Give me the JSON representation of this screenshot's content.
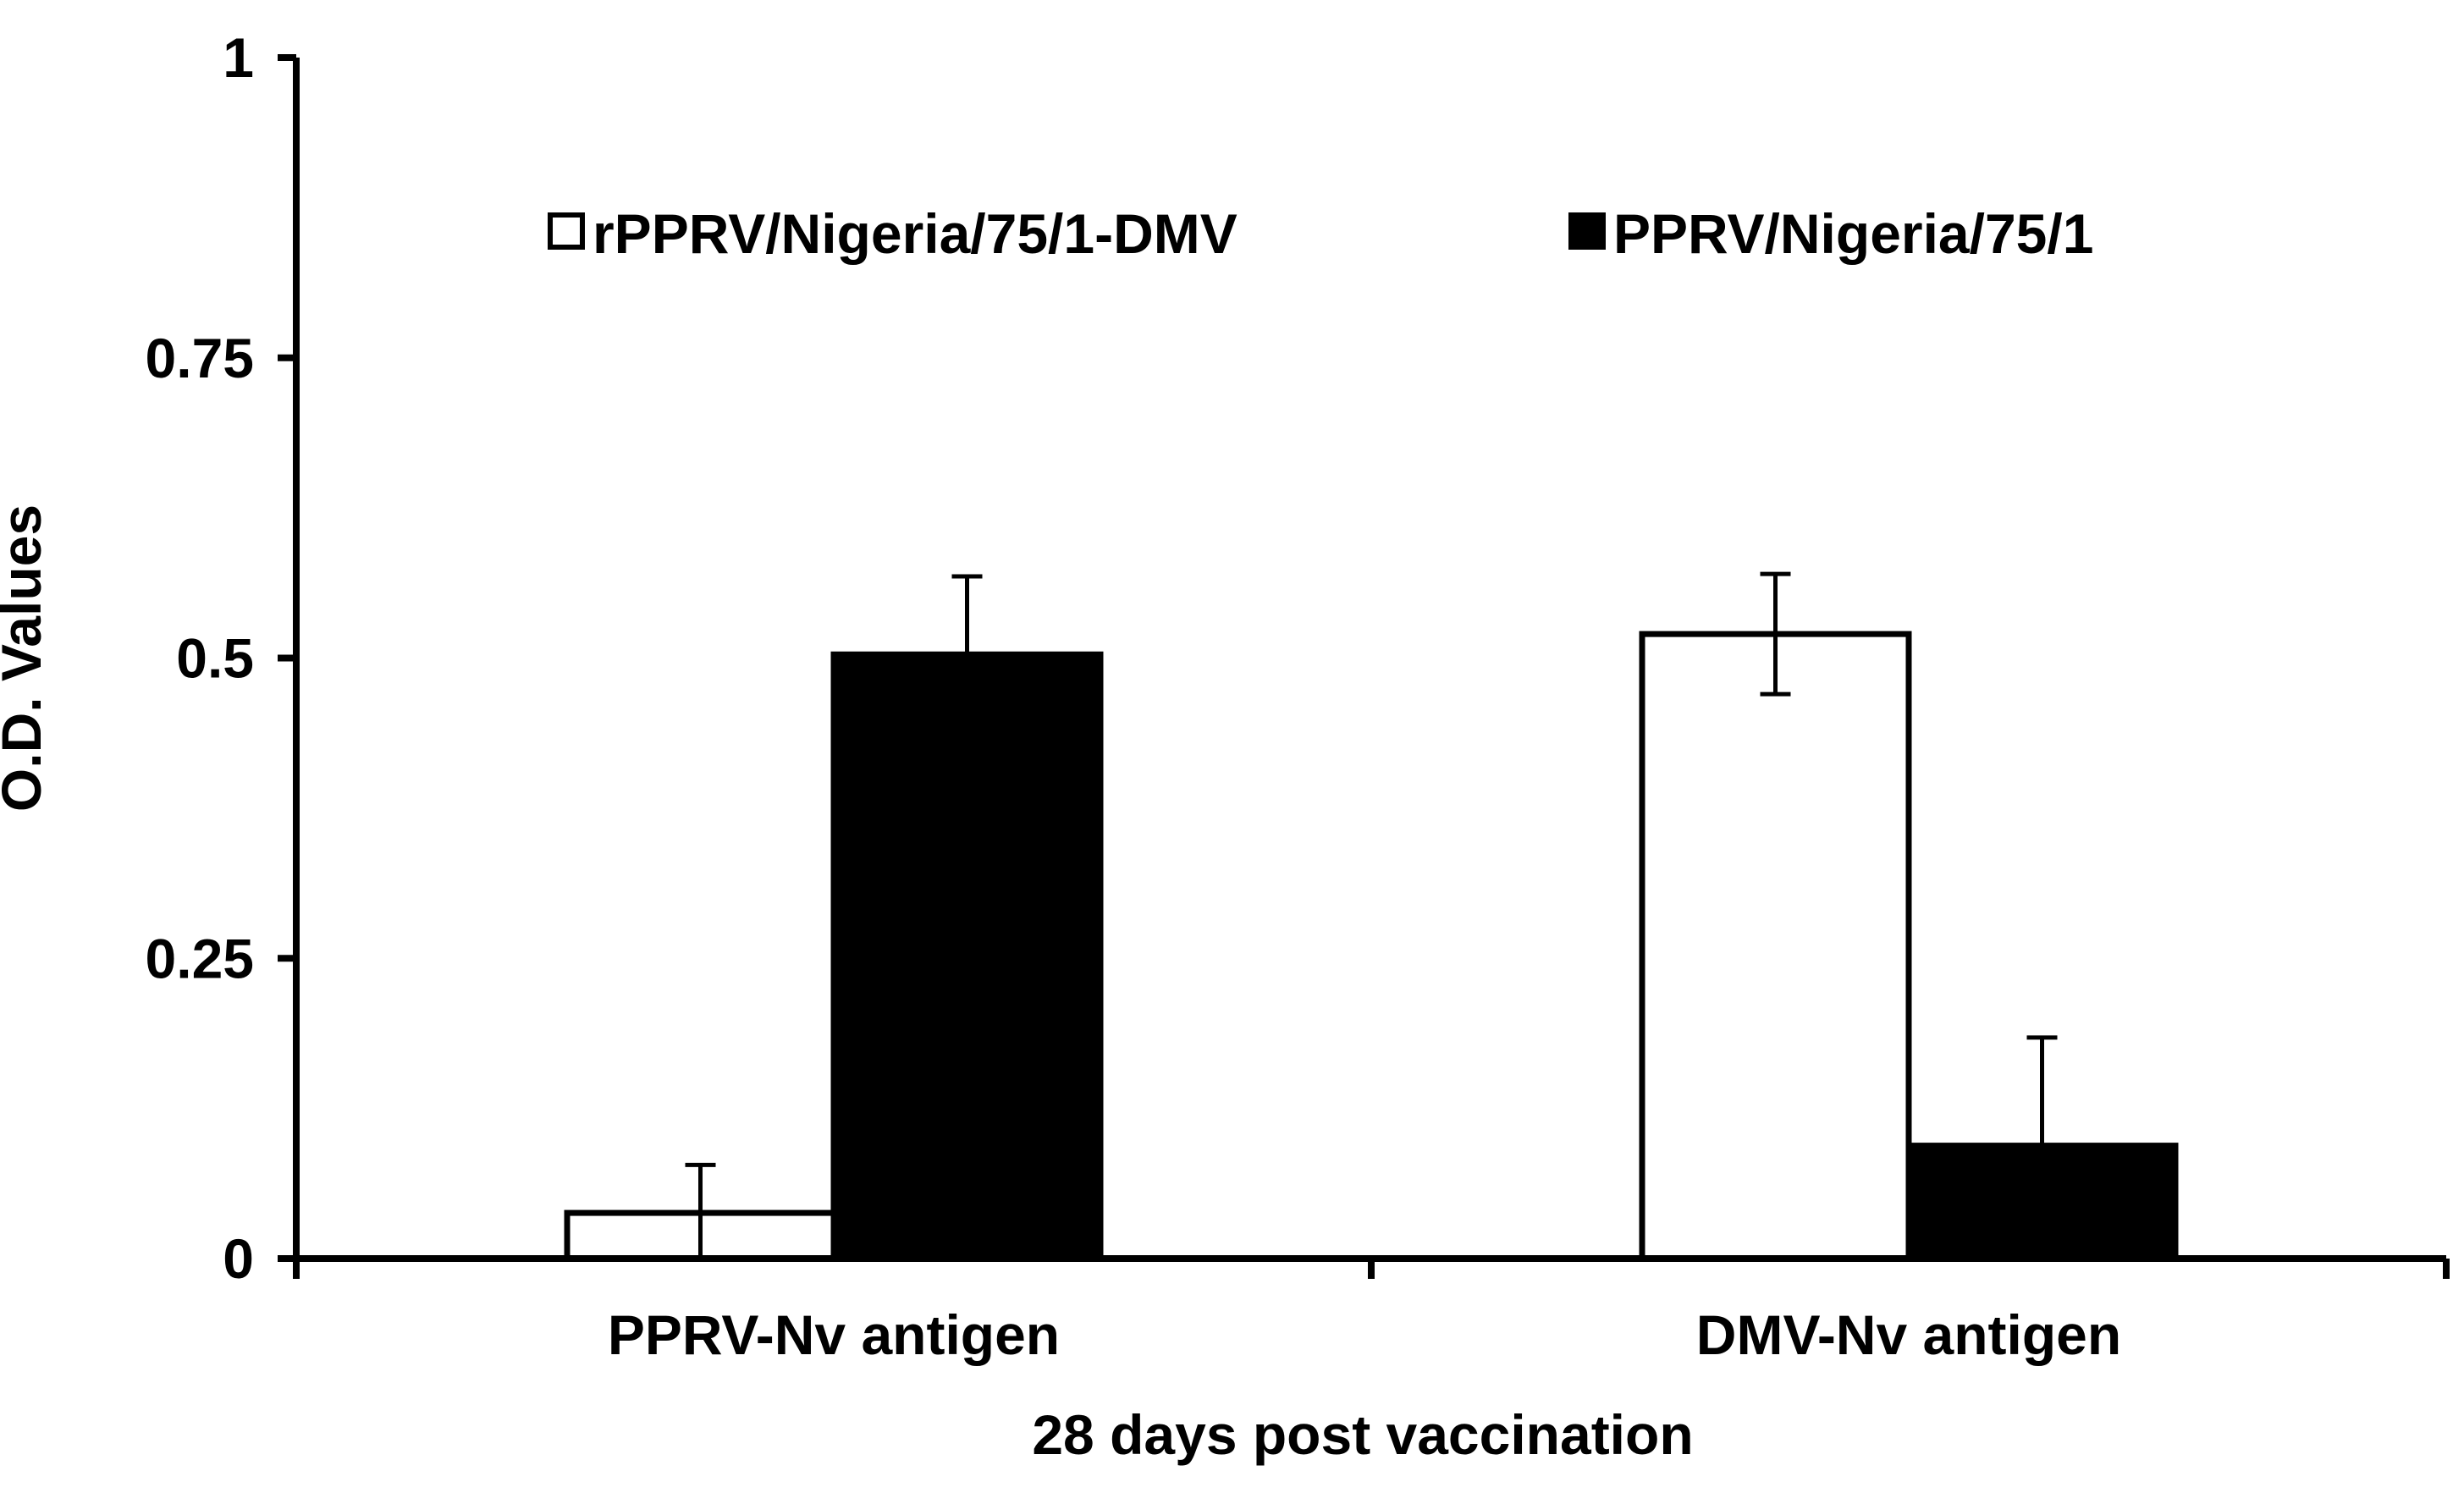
{
  "chart_data": {
    "type": "bar",
    "title": "",
    "xlabel": "28 days post vaccination",
    "ylabel": "O.D. Values",
    "categories": [
      "PPRV-Nv antigen",
      "DMV-Nv antigen"
    ],
    "ylim": [
      0,
      1
    ],
    "yticks": [
      0,
      0.25,
      0.5,
      0.75,
      1
    ],
    "ytick_labels": [
      "0",
      "0.25",
      "0.5",
      "0.75",
      "1"
    ],
    "legend_position": "top-center",
    "grid": false,
    "series": [
      {
        "name": "rPPRV/Nigeria/75/1-DMV",
        "color": "#ffffff",
        "edge_color": "#000000",
        "values": [
          0.038,
          0.52
        ],
        "errors": [
          0.04,
          0.05
        ]
      },
      {
        "name": "PPRV/Nigeria/75/1",
        "color": "#000000",
        "edge_color": "#000000",
        "values": [
          0.503,
          0.094
        ],
        "errors": [
          0.065,
          0.09
        ]
      }
    ]
  }
}
